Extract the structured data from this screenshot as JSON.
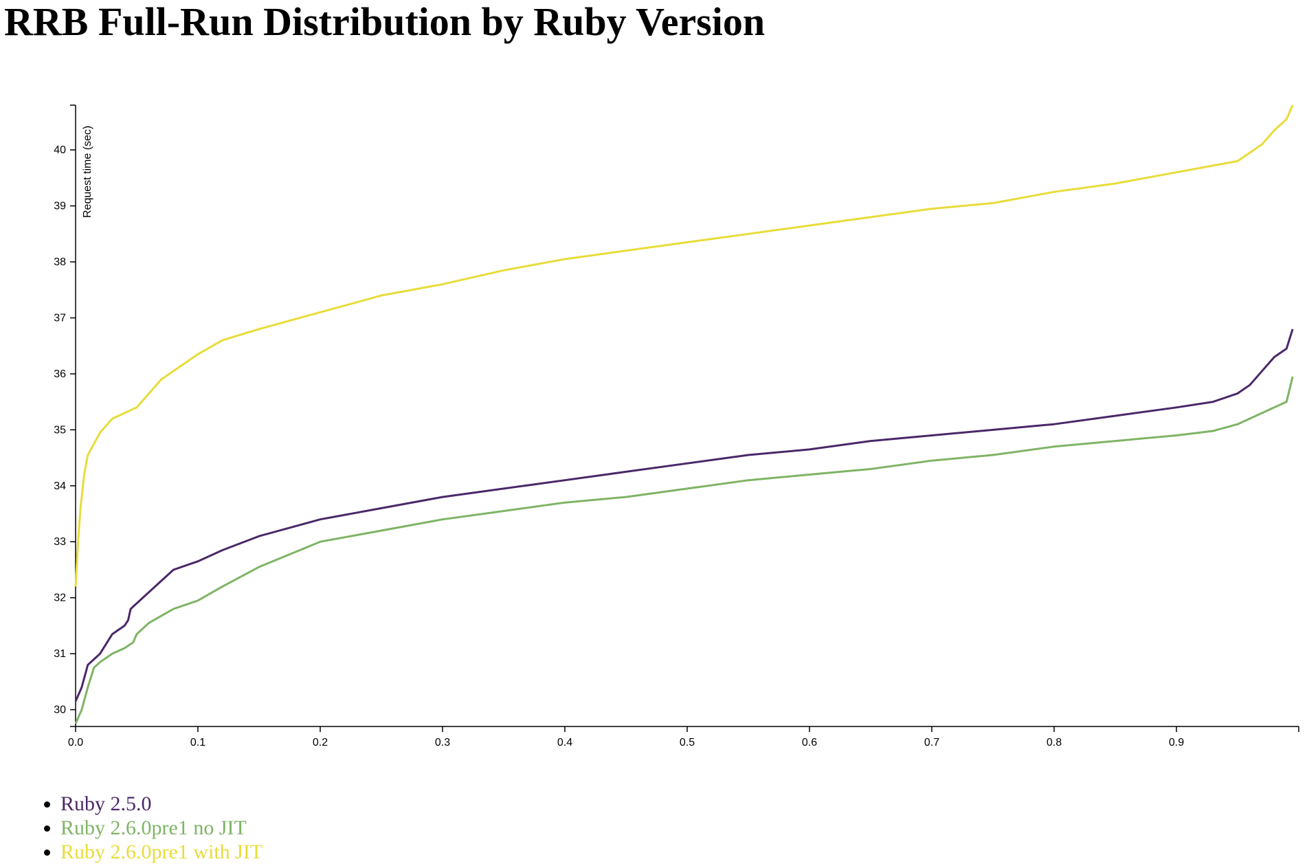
{
  "title": "RRB Full-Run Distribution by Ruby Version",
  "chart_data": {
    "type": "line",
    "title": "RRB Full-Run Distribution by Ruby Version",
    "xlabel": "",
    "ylabel": "Request time (sec)",
    "xlim": [
      0,
      1
    ],
    "ylim": [
      29.7,
      40.8
    ],
    "x_ticks": [
      0.0,
      0.1,
      0.2,
      0.3,
      0.4,
      0.5,
      0.6,
      0.7,
      0.8,
      0.9
    ],
    "x_tick_labels": [
      "0.0",
      "0.1",
      "0.2",
      "0.3",
      "0.4",
      "0.5",
      "0.6",
      "0.7",
      "0.8",
      "0.9"
    ],
    "y_ticks": [
      30,
      31,
      32,
      33,
      34,
      35,
      36,
      37,
      38,
      39,
      40
    ],
    "y_tick_labels": [
      "30",
      "31",
      "32",
      "33",
      "34",
      "35",
      "36",
      "37",
      "38",
      "39",
      "40"
    ],
    "grid": false,
    "legend_position": "bottom-left",
    "series": [
      {
        "name": "Ruby 2.5.0",
        "color": "#4a2868",
        "x": [
          0.0,
          0.005,
          0.01,
          0.02,
          0.03,
          0.04,
          0.043,
          0.045,
          0.06,
          0.08,
          0.1,
          0.12,
          0.15,
          0.2,
          0.25,
          0.3,
          0.35,
          0.4,
          0.45,
          0.5,
          0.55,
          0.6,
          0.65,
          0.7,
          0.75,
          0.8,
          0.85,
          0.9,
          0.93,
          0.95,
          0.96,
          0.97,
          0.98,
          0.99,
          0.995
        ],
        "y": [
          30.15,
          30.4,
          30.8,
          31.0,
          31.35,
          31.5,
          31.6,
          31.8,
          32.1,
          32.5,
          32.65,
          32.85,
          33.1,
          33.4,
          33.6,
          33.8,
          33.95,
          34.1,
          34.25,
          34.4,
          34.55,
          34.65,
          34.8,
          34.9,
          35.0,
          35.1,
          35.25,
          35.4,
          35.5,
          35.65,
          35.8,
          36.05,
          36.3,
          36.45,
          36.8
        ]
      },
      {
        "name": "Ruby 2.6.0pre1 no JIT",
        "color": "#7eb464",
        "x": [
          0.0,
          0.005,
          0.01,
          0.015,
          0.02,
          0.03,
          0.04,
          0.047,
          0.05,
          0.06,
          0.08,
          0.1,
          0.12,
          0.15,
          0.2,
          0.25,
          0.3,
          0.35,
          0.4,
          0.45,
          0.5,
          0.55,
          0.6,
          0.65,
          0.7,
          0.75,
          0.8,
          0.85,
          0.9,
          0.93,
          0.95,
          0.97,
          0.98,
          0.99,
          0.995
        ],
        "y": [
          29.75,
          30.0,
          30.4,
          30.75,
          30.85,
          31.0,
          31.1,
          31.2,
          31.35,
          31.55,
          31.8,
          31.95,
          32.2,
          32.55,
          33.0,
          33.2,
          33.4,
          33.55,
          33.7,
          33.8,
          33.95,
          34.1,
          34.2,
          34.3,
          34.45,
          34.55,
          34.7,
          34.8,
          34.9,
          34.98,
          35.1,
          35.3,
          35.4,
          35.5,
          35.95
        ]
      },
      {
        "name": "Ruby 2.6.0pre1 with JIT",
        "color": "#e8dc3a",
        "x": [
          0.0,
          0.002,
          0.004,
          0.007,
          0.01,
          0.015,
          0.02,
          0.03,
          0.05,
          0.07,
          0.09,
          0.1,
          0.12,
          0.15,
          0.2,
          0.25,
          0.3,
          0.35,
          0.4,
          0.45,
          0.5,
          0.55,
          0.6,
          0.65,
          0.7,
          0.75,
          0.8,
          0.85,
          0.9,
          0.95,
          0.97,
          0.98,
          0.99,
          0.995
        ],
        "y": [
          32.2,
          33.0,
          33.6,
          34.2,
          34.55,
          34.75,
          34.95,
          35.2,
          35.4,
          35.9,
          36.2,
          36.35,
          36.6,
          36.8,
          37.1,
          37.4,
          37.6,
          37.85,
          38.05,
          38.2,
          38.35,
          38.5,
          38.65,
          38.8,
          38.95,
          39.05,
          39.25,
          39.4,
          39.6,
          39.8,
          40.1,
          40.35,
          40.55,
          40.8
        ]
      }
    ]
  }
}
